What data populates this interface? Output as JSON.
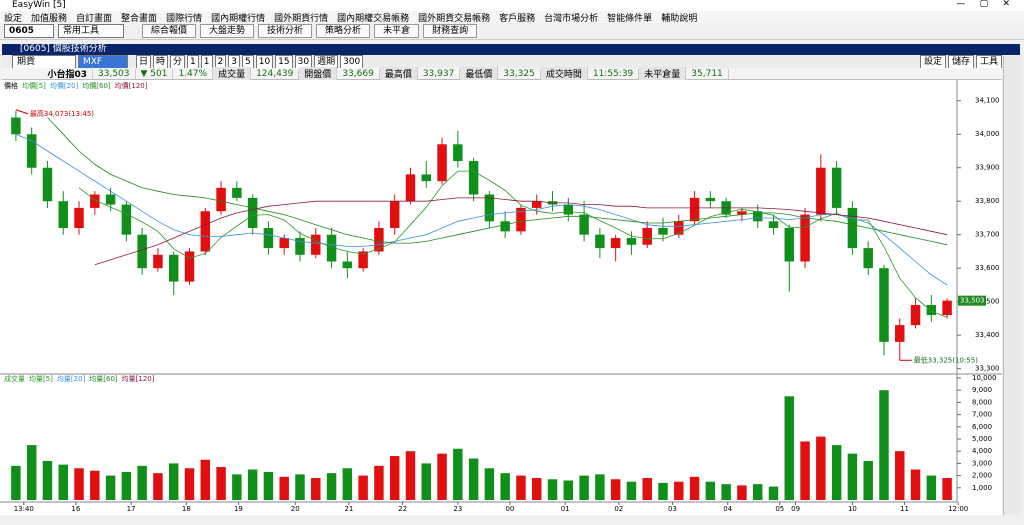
{
  "window": {
    "title": "EasyWin [5]"
  },
  "menu": [
    "設定",
    "加值服務",
    "自訂畫面",
    "整合畫面",
    "國際行情",
    "國內期權行情",
    "國外期貨行情",
    "國內期權交易帳務",
    "國外期貨交易帳務",
    "客戶服務",
    "台灣市場分析",
    "智能條件單",
    "輔助說明"
  ],
  "toolbar": {
    "code": "0605",
    "tools": "常用工具",
    "buttons": [
      "綜合報價",
      "大盤走勢",
      "技術分析",
      "策略分析",
      "未平倉",
      "財務查詢"
    ]
  },
  "subwindow": {
    "title": "[0605] 個股技術分析",
    "market": "期貨",
    "symbol": "MXF",
    "periods": [
      "日",
      "時",
      "分",
      "1",
      "1",
      "2",
      "3",
      "5",
      "10",
      "15",
      "30",
      "週期",
      "300"
    ],
    "actions": [
      "設定",
      "儲存",
      "工具"
    ]
  },
  "quote": {
    "name": "小台指03",
    "last": "33,503",
    "change": "▼ 501",
    "percent": "1.47%",
    "fields": [
      [
        "成交量",
        "124,439"
      ],
      [
        "開盤價",
        "33,669"
      ],
      [
        "最高價",
        "33,937"
      ],
      [
        "最低價",
        "33,325"
      ],
      [
        "成交時間",
        "11:55:39"
      ],
      [
        "未平倉量",
        "35,711"
      ]
    ]
  },
  "chart_data": [
    {
      "type": "candlestick",
      "legend_title": "價格",
      "up_color": "#e01010",
      "down_color": "#10901a",
      "ohlc": [
        [
          34050,
          34070,
          33980,
          34000
        ],
        [
          34000,
          34020,
          33880,
          33900
        ],
        [
          33900,
          33920,
          33780,
          33800
        ],
        [
          33800,
          33830,
          33700,
          33720
        ],
        [
          33720,
          33800,
          33700,
          33780
        ],
        [
          33780,
          33830,
          33760,
          33820
        ],
        [
          33820,
          33840,
          33770,
          33790
        ],
        [
          33790,
          33800,
          33680,
          33700
        ],
        [
          33700,
          33720,
          33580,
          33600
        ],
        [
          33600,
          33660,
          33590,
          33640
        ],
        [
          33640,
          33650,
          33520,
          33560
        ],
        [
          33560,
          33660,
          33550,
          33650
        ],
        [
          33650,
          33780,
          33640,
          33770
        ],
        [
          33770,
          33860,
          33760,
          33840
        ],
        [
          33840,
          33860,
          33800,
          33810
        ],
        [
          33810,
          33820,
          33700,
          33720
        ],
        [
          33720,
          33740,
          33640,
          33660
        ],
        [
          33660,
          33700,
          33640,
          33690
        ],
        [
          33690,
          33710,
          33620,
          33640
        ],
        [
          33640,
          33720,
          33630,
          33700
        ],
        [
          33700,
          33720,
          33600,
          33620
        ],
        [
          33620,
          33650,
          33570,
          33600
        ],
        [
          33600,
          33660,
          33590,
          33650
        ],
        [
          33650,
          33740,
          33640,
          33720
        ],
        [
          33720,
          33820,
          33700,
          33800
        ],
        [
          33800,
          33900,
          33790,
          33880
        ],
        [
          33880,
          33920,
          33840,
          33860
        ],
        [
          33860,
          33990,
          33850,
          33970
        ],
        [
          33970,
          34010,
          33900,
          33920
        ],
        [
          33920,
          33930,
          33800,
          33820
        ],
        [
          33820,
          33830,
          33720,
          33740
        ],
        [
          33740,
          33770,
          33690,
          33710
        ],
        [
          33710,
          33790,
          33700,
          33780
        ],
        [
          33780,
          33820,
          33760,
          33800
        ],
        [
          33800,
          33830,
          33770,
          33790
        ],
        [
          33790,
          33810,
          33740,
          33760
        ],
        [
          33760,
          33800,
          33680,
          33700
        ],
        [
          33700,
          33720,
          33630,
          33660
        ],
        [
          33660,
          33700,
          33620,
          33690
        ],
        [
          33690,
          33710,
          33640,
          33670
        ],
        [
          33670,
          33740,
          33660,
          33720
        ],
        [
          33720,
          33750,
          33680,
          33700
        ],
        [
          33700,
          33760,
          33690,
          33740
        ],
        [
          33740,
          33830,
          33730,
          33810
        ],
        [
          33810,
          33830,
          33780,
          33800
        ],
        [
          33800,
          33810,
          33750,
          33760
        ],
        [
          33760,
          33780,
          33740,
          33770
        ],
        [
          33770,
          33790,
          33720,
          33740
        ],
        [
          33740,
          33760,
          33700,
          33720
        ],
        [
          33720,
          33730,
          33530,
          33620
        ],
        [
          33620,
          33780,
          33600,
          33760
        ],
        [
          33760,
          33940,
          33740,
          33900
        ],
        [
          33900,
          33920,
          33760,
          33780
        ],
        [
          33780,
          33800,
          33640,
          33660
        ],
        [
          33660,
          33680,
          33580,
          33600
        ],
        [
          33600,
          33610,
          33340,
          33380
        ],
        [
          33380,
          33450,
          33325,
          33430
        ],
        [
          33430,
          33510,
          33420,
          33490
        ],
        [
          33490,
          33520,
          33440,
          33460
        ],
        [
          33460,
          33510,
          33450,
          33503
        ]
      ],
      "series": [
        {
          "name": "均價[5]",
          "color": "#2a9a2a",
          "values": [
            null,
            null,
            null,
            null,
            33840,
            33804,
            33782,
            33762,
            33738,
            33710,
            33658,
            33630,
            33644,
            33692,
            33726,
            33758,
            33760,
            33744,
            33704,
            33682,
            33662,
            33650,
            33642,
            33658,
            33678,
            33730,
            33782,
            33846,
            33890,
            33890,
            33862,
            33832,
            33788,
            33770,
            33764,
            33768,
            33766,
            33742,
            33720,
            33696,
            33688,
            33688,
            33704,
            33728,
            33754,
            33766,
            33776,
            33768,
            33758,
            33722,
            33722,
            33748,
            33764,
            33744,
            33744,
            33664,
            33570,
            33512,
            33472,
            33453
          ]
        },
        {
          "name": "均價[20]",
          "color": "#3b8fe0",
          "values": [
            34000,
            33980,
            33950,
            33920,
            33890,
            33860,
            33830,
            33800,
            33770,
            33740,
            33715,
            33700,
            33695,
            33695,
            33700,
            33705,
            33700,
            33690,
            33680,
            33675,
            33670,
            33665,
            33665,
            33670,
            33680,
            33690,
            33700,
            33720,
            33740,
            33750,
            33760,
            33765,
            33770,
            33775,
            33785,
            33790,
            33785,
            33775,
            33760,
            33745,
            33730,
            33725,
            33725,
            33730,
            33735,
            33740,
            33745,
            33750,
            33750,
            33745,
            33750,
            33760,
            33760,
            33750,
            33735,
            33700,
            33660,
            33620,
            33580,
            33550
          ]
        },
        {
          "name": "均價[60]",
          "color": "#1f8a1f",
          "values": [
            null,
            null,
            34050,
            34000,
            33950,
            33910,
            33880,
            33860,
            33840,
            33830,
            33820,
            33815,
            33810,
            33800,
            33790,
            33780,
            33770,
            33760,
            33745,
            33730,
            33715,
            33700,
            33690,
            33680,
            33675,
            33675,
            33680,
            33690,
            33700,
            33710,
            33720,
            33730,
            33740,
            33745,
            33750,
            33755,
            33755,
            33750,
            33745,
            33740,
            33735,
            33735,
            33740,
            33745,
            33750,
            33755,
            33760,
            33765,
            33765,
            33760,
            33750,
            33745,
            33740,
            33730,
            33720,
            33710,
            33700,
            33690,
            33680,
            33670
          ]
        },
        {
          "name": "均價[120]",
          "color": "#8b1a3a",
          "values": [
            null,
            null,
            null,
            null,
            null,
            33610,
            33625,
            33640,
            33655,
            33670,
            33690,
            33710,
            33730,
            33750,
            33765,
            33775,
            33785,
            33790,
            33795,
            33800,
            33800,
            33800,
            33800,
            33800,
            33800,
            33800,
            33800,
            33805,
            33810,
            33810,
            33810,
            33805,
            33800,
            33800,
            33795,
            33795,
            33790,
            33790,
            33785,
            33785,
            33780,
            33780,
            33780,
            33780,
            33780,
            33780,
            33780,
            33780,
            33778,
            33775,
            33770,
            33765,
            33760,
            33755,
            33750,
            33740,
            33730,
            33720,
            33710,
            33700
          ]
        }
      ],
      "xlim": [
        -0.5,
        59.5
      ],
      "xticks": [
        {
          "value": 0.5,
          "label": "13:40"
        },
        {
          "value": 3.8,
          "label": "16"
        },
        {
          "value": 7.3,
          "label": "17"
        },
        {
          "value": 10.8,
          "label": "18"
        },
        {
          "value": 14.1,
          "label": "19"
        },
        {
          "value": 17.7,
          "label": "20"
        },
        {
          "value": 21.1,
          "label": "21"
        },
        {
          "value": 24.5,
          "label": "22"
        },
        {
          "value": 28,
          "label": "23"
        },
        {
          "value": 31.3,
          "label": "00"
        },
        {
          "value": 34.8,
          "label": "01"
        },
        {
          "value": 38.2,
          "label": "02"
        },
        {
          "value": 41.6,
          "label": "03"
        },
        {
          "value": 45.1,
          "label": "04"
        },
        {
          "value": 48.4,
          "label": "05"
        },
        {
          "value": 49.4,
          "label": "09"
        },
        {
          "value": 53,
          "label": "10"
        },
        {
          "value": 56.3,
          "label": "11"
        },
        {
          "value": 59.7,
          "label": "12:00"
        }
      ],
      "ylim": [
        33290,
        34150
      ],
      "yticks": [
        {
          "value": 33300,
          "label": "33,300"
        },
        {
          "value": 33400,
          "label": "33,400"
        },
        {
          "value": 33500,
          "label": "33,500"
        },
        {
          "value": 33600,
          "label": "33,600"
        },
        {
          "value": 33700,
          "label": "33,700"
        },
        {
          "value": 33800,
          "label": "33,800"
        },
        {
          "value": 33900,
          "label": "33,900"
        },
        {
          "value": 34000,
          "label": "34,000"
        },
        {
          "value": 34100,
          "label": "34,100"
        }
      ],
      "annotations": [
        {
          "text": "最高34,073(13:45)",
          "x": 0,
          "y": 34073
        },
        {
          "text": "最低33,325(10:55)",
          "x": 56,
          "y": 33325
        }
      ],
      "last_price": {
        "value": 33503,
        "label": "33,503"
      }
    },
    {
      "type": "bar",
      "legend_title": "成交量",
      "legend": [
        "均量[5]",
        "均量[20]",
        "均量[60]",
        "均量[120]"
      ],
      "legend_colors": [
        "#2a9a2a",
        "#3b8fe0",
        "#1f8a1f",
        "#8b1a3a"
      ],
      "values": [
        2800,
        4500,
        3200,
        2900,
        2600,
        2400,
        2000,
        2300,
        2800,
        2200,
        3000,
        2600,
        3300,
        2700,
        2100,
        2500,
        2300,
        1900,
        2100,
        1800,
        2200,
        2600,
        2000,
        2800,
        3600,
        4000,
        3000,
        3800,
        4200,
        3400,
        2600,
        2200,
        2000,
        1800,
        1700,
        1600,
        2000,
        2100,
        1700,
        1500,
        1800,
        1400,
        1500,
        1900,
        1500,
        1300,
        1200,
        1300,
        1100,
        8500,
        4800,
        5200,
        4500,
        3800,
        3200,
        9000,
        4000,
        2500,
        2000,
        1800
      ],
      "ylim": [
        0,
        10000
      ],
      "yticks": [
        {
          "value": 1000,
          "label": "1,000"
        },
        {
          "value": 2000,
          "label": "2,000"
        },
        {
          "value": 3000,
          "label": "3,000"
        },
        {
          "value": 4000,
          "label": "4,000"
        },
        {
          "value": 5000,
          "label": "5,000"
        },
        {
          "value": 6000,
          "label": "6,000"
        },
        {
          "value": 7000,
          "label": "7,000"
        },
        {
          "value": 8000,
          "label": "8,000"
        },
        {
          "value": 9000,
          "label": "9,000"
        },
        {
          "value": 10000,
          "label": "10,000"
        }
      ]
    }
  ]
}
